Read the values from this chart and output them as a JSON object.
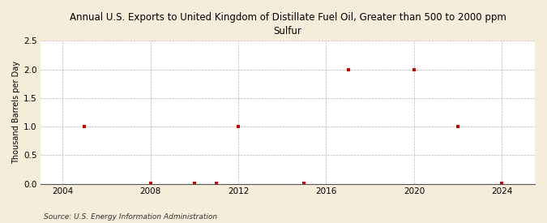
{
  "title": "Annual U.S. Exports to United Kingdom of Distillate Fuel Oil, Greater than 500 to 2000 ppm\nSulfur",
  "ylabel": "Thousand Barrels per Day",
  "source": "Source: U.S. Energy Information Administration",
  "background_color": "#f5edda",
  "plot_background": "#ffffff",
  "marker_color": "#cc0000",
  "xlim": [
    2003,
    2025.5
  ],
  "ylim": [
    0,
    2.5
  ],
  "xticks": [
    2004,
    2008,
    2012,
    2016,
    2020,
    2024
  ],
  "yticks": [
    0.0,
    0.5,
    1.0,
    1.5,
    2.0,
    2.5
  ],
  "data_x": [
    2005,
    2008,
    2010,
    2011,
    2012,
    2015,
    2017,
    2020,
    2022,
    2024
  ],
  "data_y": [
    1.0,
    0.007,
    0.007,
    0.007,
    1.0,
    0.007,
    2.0,
    2.0,
    1.0,
    0.007
  ]
}
